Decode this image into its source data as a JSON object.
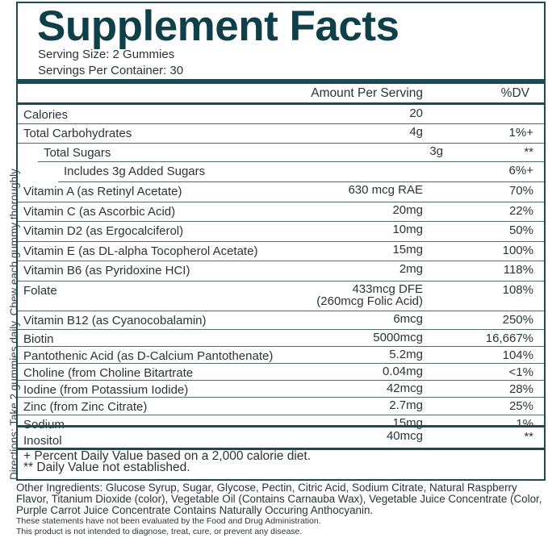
{
  "directions": "Directions: Take 2 gummies daily. Chew each gummy thoroughly",
  "title": "Supplement Facts",
  "serving_size": "Serving Size: 2 Gummies",
  "servings_per_container": "Servings Per Container: 30",
  "header": {
    "amount": "Amount Per Serving",
    "dv": "%DV"
  },
  "rows": [
    {
      "name": "Calories",
      "amount": "20",
      "dv": ""
    },
    {
      "name": "Total Carbohydrates",
      "amount": "4g",
      "dv": "1%+"
    },
    {
      "name": "Total Sugars",
      "amount": "3g",
      "dv": "**"
    },
    {
      "name": "Includes 3g Added Sugars",
      "amount": "",
      "dv": "6%+"
    },
    {
      "name": "Vitamin A (as Retinyl Acetate)",
      "amount": "630 mcg RAE",
      "dv": "70%"
    },
    {
      "name": "Vitamin C (as Ascorbic Acid)",
      "amount": "20mg",
      "dv": "22%"
    },
    {
      "name": "Vitamin D2 (as Ergocalciferol)",
      "amount": "10mg",
      "dv": "50%"
    },
    {
      "name": "Vitamin E (as DL-alpha Tocopherol Acetate)",
      "amount": "15mg",
      "dv": "100%"
    },
    {
      "name": "Vitamin B6 (as Pyridoxine HCI)",
      "amount": "2mg",
      "dv": "118%"
    },
    {
      "name": "Folate",
      "amount": "433mcg DFE",
      "amount2": "(260mcg Folic Acid)",
      "dv": "108%"
    },
    {
      "name": "Vitamin B12 (as Cyanocobalamin)",
      "amount": "6mcg",
      "dv": "250%"
    },
    {
      "name": "Biotin",
      "amount": "5000mcg",
      "dv": "16,667%"
    },
    {
      "name": "Pantothenic Acid (as D-Calcium Pantothenate)",
      "amount": "5.2mg",
      "dv": "104%"
    },
    {
      "name": "Choline (from Choline Bitartrate",
      "amount": "0.04mg",
      "dv": "<1%"
    },
    {
      "name": "Iodine (from Potassium Iodide)",
      "amount": "42mcg",
      "dv": "28%"
    },
    {
      "name": "Zinc (from Zinc Citrate)",
      "amount": "2.7mg",
      "dv": "25%"
    },
    {
      "name": "Sodium",
      "amount": "15mg",
      "dv": "1%"
    }
  ],
  "inositol": {
    "name": "Inositol",
    "amount": "40mcg",
    "dv": "**"
  },
  "footnotes": [
    "+ Percent Daily Value based on a 2,000 calorie diet.",
    "** Daily Value not established."
  ],
  "other_ingredients": "Other Ingredients: Glucose Syrup, Sugar, Glycose, Pectin, Citric Acid, Sodium Citrate, Natural Raspberry Flavor, Titanium Dioxide (color), Vegetable Oil (Contains Carnauba Wax), Vegetable Juice Concentrate (Color, Purple Carrot Juice Concentrate Contains Naturally Occuring Anthocyanin.",
  "disclaimer": [
    "These statements have not been evaluated by the Food and Drug Administration.",
    "This product is not intended to diagnose, treat, cure, or prevent any disease."
  ]
}
